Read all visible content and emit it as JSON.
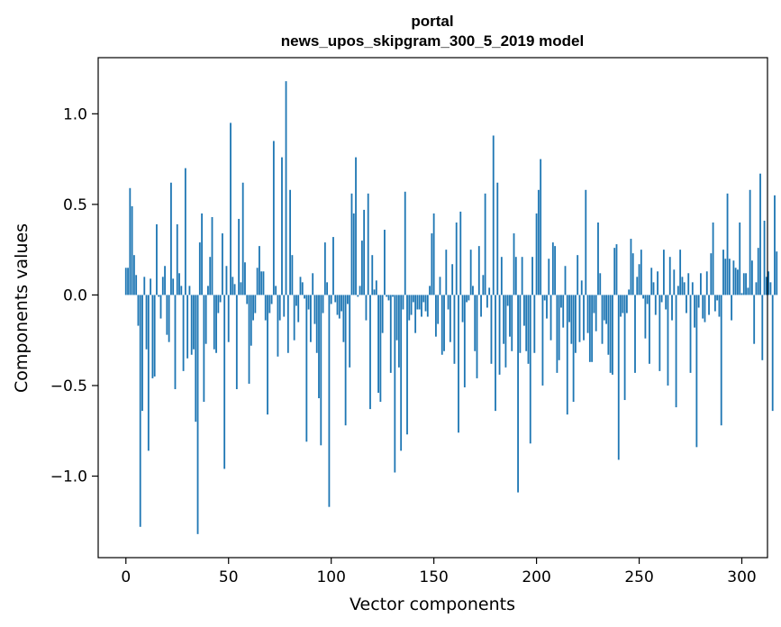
{
  "chart_data": {
    "type": "bar",
    "title": "portal",
    "subtitle": "news_upos_skipgram_300_5_2019 model",
    "xlabel": "Vector components",
    "ylabel": "Components values",
    "xlim": [
      -13.5,
      312.5
    ],
    "ylim": [
      -1.45,
      1.31
    ],
    "xticks": [
      0,
      50,
      100,
      150,
      200,
      250,
      300
    ],
    "xtick_labels": [
      "0",
      "50",
      "100",
      "150",
      "200",
      "250",
      "300"
    ],
    "yticks": [
      -1.0,
      -0.5,
      0.0,
      0.5,
      1.0
    ],
    "ytick_labels": [
      "−1.0",
      "−0.5",
      "0.0",
      "0.5",
      "1.0"
    ],
    "bar_color": "#1f77b4",
    "values": [
      0.15,
      0.15,
      0.59,
      0.49,
      0.22,
      0.11,
      -0.17,
      -1.28,
      -0.64,
      0.1,
      -0.3,
      -0.86,
      0.09,
      -0.46,
      -0.45,
      0.39,
      -0.01,
      -0.13,
      0.1,
      0.16,
      -0.22,
      -0.26,
      0.62,
      0.09,
      -0.52,
      0.39,
      0.12,
      0.05,
      -0.42,
      0.7,
      -0.35,
      0.05,
      -0.33,
      -0.3,
      -0.7,
      -1.32,
      0.29,
      0.45,
      -0.59,
      -0.27,
      0.05,
      0.21,
      0.43,
      -0.3,
      -0.32,
      -0.1,
      -0.04,
      0.34,
      -0.96,
      0.16,
      -0.26,
      0.95,
      0.1,
      0.06,
      -0.52,
      0.42,
      0.07,
      0.62,
      0.18,
      -0.05,
      -0.49,
      -0.28,
      -0.14,
      -0.1,
      0.15,
      0.27,
      0.13,
      0.13,
      -0.14,
      -0.66,
      -0.1,
      -0.05,
      0.85,
      0.05,
      -0.34,
      -0.14,
      0.76,
      -0.12,
      1.18,
      -0.32,
      0.58,
      0.22,
      -0.25,
      -0.06,
      -0.15,
      0.1,
      0.07,
      -0.02,
      -0.81,
      -0.08,
      -0.26,
      0.12,
      -0.16,
      -0.32,
      -0.57,
      -0.83,
      -0.1,
      0.29,
      0.07,
      -1.17,
      -0.05,
      0.32,
      -0.04,
      -0.11,
      -0.13,
      -0.09,
      -0.26,
      -0.72,
      -0.05,
      -0.4,
      0.56,
      0.45,
      0.76,
      -0.01,
      0.05,
      0.3,
      0.47,
      -0.14,
      0.56,
      -0.63,
      0.22,
      0.03,
      0.08,
      -0.54,
      -0.59,
      -0.21,
      0.36,
      -0.01,
      -0.03,
      -0.43,
      -0.01,
      -0.98,
      -0.25,
      -0.4,
      -0.86,
      -0.08,
      0.57,
      -0.77,
      -0.14,
      -0.11,
      -0.04,
      -0.21,
      -0.08,
      -0.08,
      -0.12,
      -0.04,
      -0.09,
      -0.12,
      0.05,
      0.34,
      0.45,
      -0.23,
      -0.16,
      0.1,
      -0.33,
      -0.31,
      0.25,
      -0.08,
      -0.26,
      0.17,
      -0.38,
      0.4,
      -0.76,
      0.46,
      -0.15,
      -0.51,
      -0.04,
      -0.03,
      0.25,
      0.05,
      -0.31,
      -0.46,
      0.27,
      -0.12,
      0.11,
      0.56,
      -0.07,
      0.04,
      -0.38,
      0.88,
      -0.64,
      0.62,
      -0.44,
      0.21,
      -0.27,
      -0.4,
      -0.06,
      -0.23,
      -0.31,
      0.34,
      0.21,
      -1.09,
      -0.32,
      0.21,
      -0.17,
      -0.31,
      -0.38,
      -0.82,
      0.21,
      -0.32,
      0.45,
      0.58,
      0.75,
      -0.5,
      -0.03,
      -0.13,
      0.2,
      -0.25,
      0.29,
      0.27,
      -0.43,
      -0.36,
      -0.07,
      -0.18,
      0.16,
      -0.66,
      -0.15,
      -0.27,
      -0.59,
      -0.32,
      0.22,
      -0.26,
      0.08,
      -0.25,
      0.58,
      -0.21,
      -0.37,
      -0.37,
      -0.1,
      -0.2,
      0.4,
      0.12,
      -0.27,
      -0.14,
      -0.16,
      -0.33,
      -0.43,
      -0.44,
      0.26,
      0.28,
      -0.91,
      -0.12,
      -0.1,
      -0.58,
      -0.1,
      0.03,
      0.31,
      0.23,
      -0.43,
      0.1,
      0.17,
      0.25,
      -0.02,
      -0.24,
      -0.05,
      -0.38,
      0.15,
      0.07,
      -0.11,
      0.13,
      -0.42,
      -0.04,
      0.25,
      -0.08,
      -0.5,
      0.21,
      -0.14,
      0.14,
      -0.62,
      0.05,
      0.25,
      0.1,
      0.07,
      -0.1,
      0.12,
      -0.43,
      0.07,
      -0.18,
      -0.84,
      -0.07,
      0.12,
      -0.13,
      -0.15,
      0.13,
      -0.11,
      0.23,
      0.4,
      -0.09,
      -0.03,
      -0.12,
      -0.72,
      0.25,
      0.2,
      0.56,
      0.2,
      -0.14,
      0.19,
      0.15,
      0.14,
      0.4,
      0.01,
      0.12,
      0.12,
      0.04,
      0.58,
      0.19,
      -0.27,
      0.07,
      0.26,
      0.67,
      -0.36,
      0.41,
      0.1,
      0.13,
      0.07,
      -0.64,
      0.55,
      0.24
    ]
  }
}
